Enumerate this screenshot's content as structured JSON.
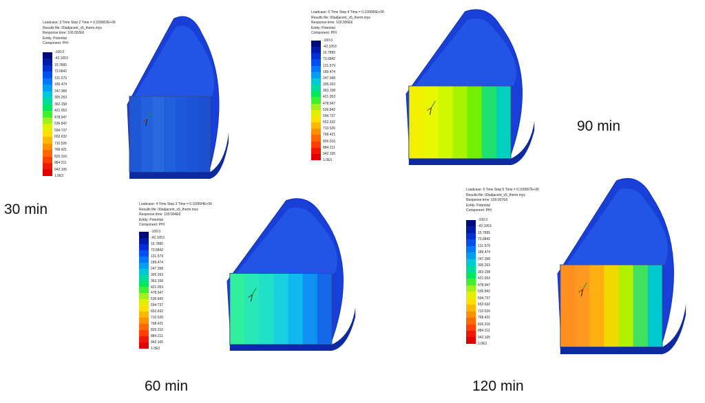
{
  "legend": {
    "colors": [
      "#000a7a",
      "#001aa8",
      "#0030d2",
      "#0050f0",
      "#0078f8",
      "#00a0f0",
      "#00c8d8",
      "#00dca0",
      "#00e860",
      "#40f030",
      "#a0f020",
      "#e0f000",
      "#ffe000",
      "#ffb800",
      "#ff9000",
      "#ff6800",
      "#ff4000",
      "#f01800",
      "#e00000"
    ],
    "ticks": [
      "-100.0",
      "-42.1053",
      "15.7895",
      "73.6842",
      "131.579",
      "189.474",
      "247.368",
      "305.263",
      "363.158",
      "421.053",
      "478.947",
      "536.842",
      "594.737",
      "652.632",
      "710.526",
      "768.421",
      "826.316",
      "884.211",
      "942.105",
      "1.0E3"
    ]
  },
  "panels": [
    {
      "time_label": "30 min",
      "header": [
        "Loadcase: 3 Time Step 2 Time = 0.100002E+06",
        "Results file: 00adjacent_v5_therm.mys",
        "Response time: 100.002E6",
        "Entity: Potential",
        "Component: PHI"
      ],
      "face_colors": [
        "#1e56d8",
        "#2260dc",
        "#2a68e0",
        "#2060dc",
        "#1c58d8",
        "#1a54d4",
        "#1850d0"
      ]
    },
    {
      "time_label": "90 min",
      "header": [
        "Loadcase: 5 Time Step 4 Time = 0.100005E+06",
        "Results file: 00adjacent_v5_therm.mys",
        "Response time: 100.005E6",
        "Entity: Potential",
        "Component: PHI"
      ],
      "face_colors": [
        "#f0f000",
        "#e8f800",
        "#d0f800",
        "#a8f400",
        "#70f000",
        "#20e070",
        "#00d0c0"
      ]
    },
    {
      "time_label": "60 min",
      "header": [
        "Loadcase: 4 Time Step 3 Time = 0.100004E+06",
        "Results file: 00adjacent_v5_therm.mys",
        "Response time: 100.004E6",
        "Entity: Potential",
        "Component: PHI"
      ],
      "face_colors": [
        "#30f0a0",
        "#28e8b8",
        "#20e0c8",
        "#18d0e0",
        "#10b8f0",
        "#1090f0",
        "#1468e8"
      ]
    },
    {
      "time_label": "120 min",
      "header": [
        "Loadcase: 6 Time Step 5 Time = 0.100007E+06",
        "Results file: 00adjacent_v5_therm.mys",
        "Response time: 100.007E6",
        "Entity: Potential",
        "Component: PHI"
      ],
      "face_colors": [
        "#ff9020",
        "#ff9820",
        "#ffb010",
        "#f0d800",
        "#b0f000",
        "#40e060",
        "#00c8d0"
      ]
    }
  ]
}
